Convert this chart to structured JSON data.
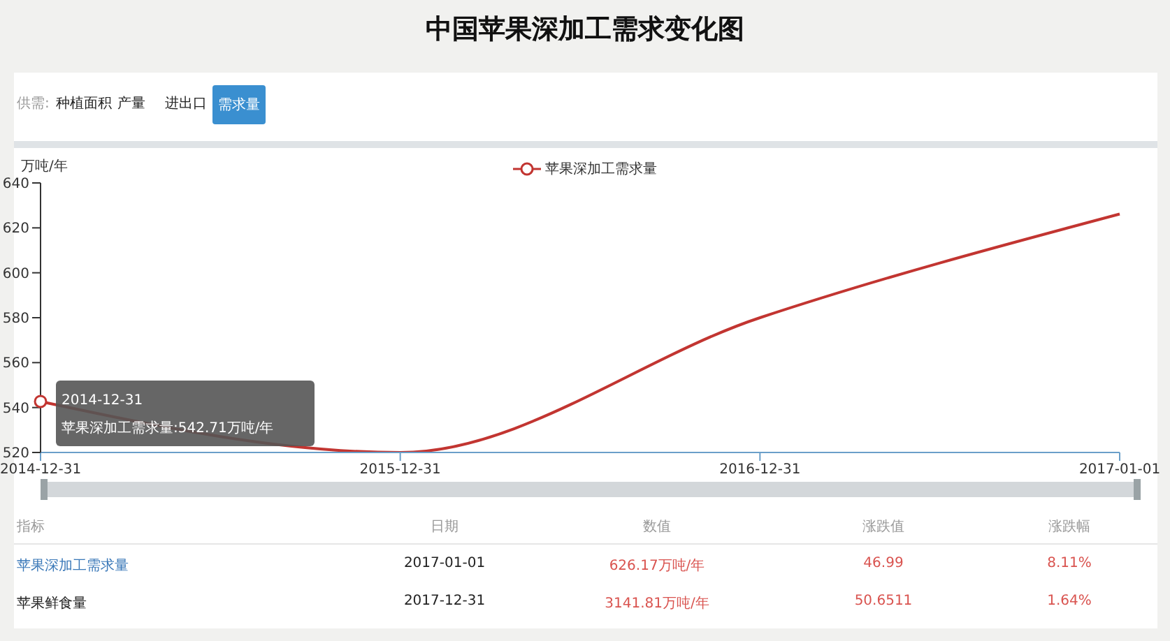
{
  "chart_data": {
    "type": "line",
    "title": "中国苹果深加工需求变化图",
    "ylabel": "万吨/年",
    "categories": [
      "2014-12-31",
      "2015-12-31",
      "2016-12-31",
      "2017-01-01"
    ],
    "series": [
      {
        "name": "苹果深加工需求量",
        "color": "#c23531",
        "values": [
          542.71,
          520,
          580,
          626.17
        ]
      }
    ],
    "ylim": [
      520,
      640
    ],
    "yticks": [
      520,
      540,
      560,
      580,
      600,
      620,
      640
    ],
    "grid": false,
    "legend": "top",
    "marker": "none",
    "line_style": "solid",
    "annotations": [
      "供需:",
      "种植面积",
      "产量",
      "进出口",
      "需求量",
      {
        "text": "2014-12-31\n苹果深加工需求量:542.71万吨/年",
        "x": "2014-12-31",
        "y": 542.71
      },
      "指标",
      "日期",
      "数值",
      "涨跌值",
      "涨跌幅",
      "苹果深加工需求量",
      "2017-01-01",
      "626.17万吨/年",
      "46.99",
      "8.11%",
      "苹果鲜食量",
      "2017-12-31",
      "3141.81万吨/年",
      "50.6511",
      "1.64%"
    ]
  }
}
